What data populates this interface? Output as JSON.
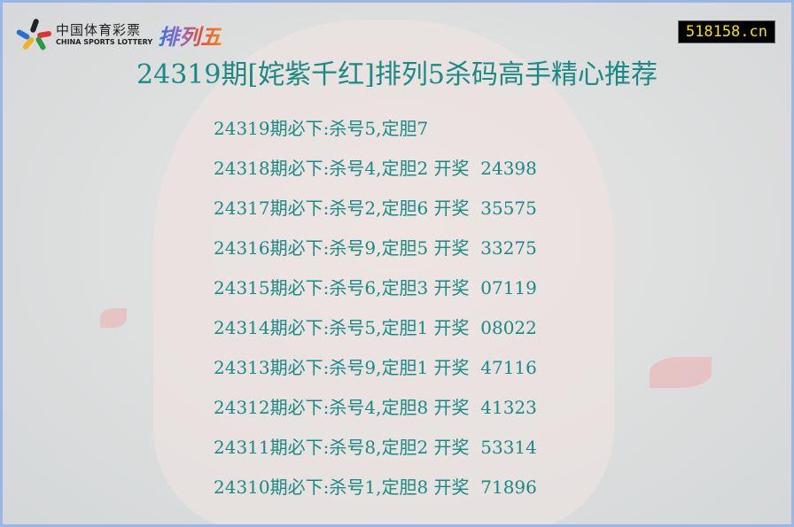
{
  "logo": {
    "cn": "中国体育彩票",
    "en": "CHINA SPORTS LOTTERY",
    "game": "排列五"
  },
  "site_badge": "518158.cn",
  "title": "24319期[姹紫千红]排列5杀码高手精心推荐",
  "rows": [
    "24319期必下:杀号5,定胆7",
    "24318期必下:杀号4,定胆2 开奖  24398",
    "24317期必下:杀号2,定胆6 开奖  35575",
    "24316期必下:杀号9,定胆5 开奖  33275",
    "24315期必下:杀号6,定胆3 开奖  07119",
    "24314期必下:杀号5,定胆1 开奖  08022",
    "24313期必下:杀号9,定胆1 开奖  47116",
    "24312期必下:杀号4,定胆8 开奖  41323",
    "24311期必下:杀号8,定胆2 开奖  53314",
    "24310期必下:杀号1,定胆8 开奖  71896"
  ],
  "colors": {
    "text": "#1a8a84",
    "badge_bg": "#000000",
    "badge_text": "#f6e000",
    "border": "#9db4e6"
  }
}
